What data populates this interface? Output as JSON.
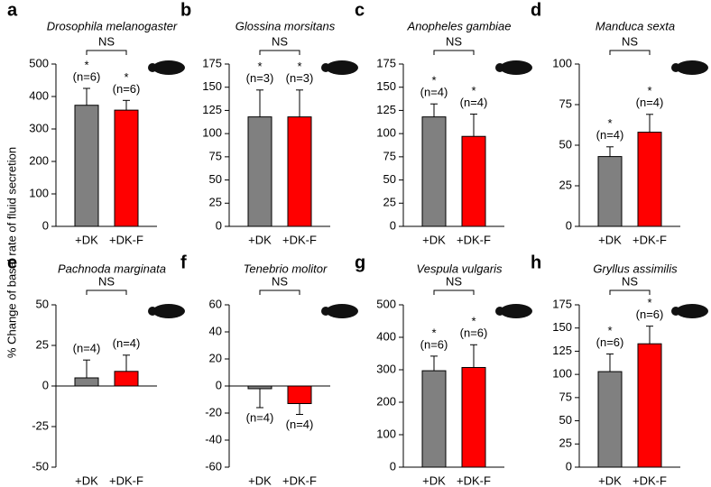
{
  "ylabel": "% Change of basal rate of fluid secretion",
  "chart_data": [
    {
      "type": "bar",
      "letter": "a",
      "title": "Drosophila melanogaster",
      "categories": [
        "+DK",
        "+DK-F"
      ],
      "values": [
        373,
        358
      ],
      "errors": [
        52,
        30
      ],
      "colors": [
        "#808080",
        "#ff0000"
      ],
      "annotations": [
        "(n=6)",
        "(n=6)"
      ],
      "stars": [
        "*",
        "*"
      ],
      "bracket_label": "NS",
      "ylim": [
        0,
        500
      ],
      "yticks": [
        0,
        100,
        200,
        300,
        400,
        500
      ]
    },
    {
      "type": "bar",
      "letter": "b",
      "title": "Glossina morsitans",
      "categories": [
        "+DK",
        "+DK-F"
      ],
      "values": [
        118,
        118
      ],
      "errors": [
        29,
        29
      ],
      "colors": [
        "#808080",
        "#ff0000"
      ],
      "annotations": [
        "(n=3)",
        "(n=3)"
      ],
      "stars": [
        "*",
        "*"
      ],
      "bracket_label": "NS",
      "ylim": [
        0,
        175
      ],
      "yticks": [
        0,
        25,
        50,
        75,
        100,
        125,
        150,
        175
      ]
    },
    {
      "type": "bar",
      "letter": "c",
      "title": "Anopheles gambiae",
      "categories": [
        "+DK",
        "+DK-F"
      ],
      "values": [
        118,
        97
      ],
      "errors": [
        14,
        24
      ],
      "colors": [
        "#808080",
        "#ff0000"
      ],
      "annotations": [
        "(n=4)",
        "(n=4)"
      ],
      "stars": [
        "*",
        "*"
      ],
      "bracket_label": "NS",
      "ylim": [
        0,
        175
      ],
      "yticks": [
        0,
        25,
        50,
        75,
        100,
        125,
        150,
        175
      ]
    },
    {
      "type": "bar",
      "letter": "d",
      "title": "Manduca sexta",
      "categories": [
        "+DK",
        "+DK-F"
      ],
      "values": [
        43,
        58
      ],
      "errors": [
        6,
        11
      ],
      "colors": [
        "#808080",
        "#ff0000"
      ],
      "annotations": [
        "(n=4)",
        "(n=4)"
      ],
      "stars": [
        "*",
        "*"
      ],
      "bracket_label": "NS",
      "ylim": [
        0,
        100
      ],
      "yticks": [
        0,
        25,
        50,
        75,
        100
      ]
    },
    {
      "type": "bar",
      "letter": "e",
      "title": "Pachnoda marginata",
      "categories": [
        "+DK",
        "+DK-F"
      ],
      "values": [
        5,
        9
      ],
      "errors": [
        11,
        10
      ],
      "colors": [
        "#808080",
        "#ff0000"
      ],
      "annotations": [
        "(n=4)",
        "(n=4)"
      ],
      "bracket_label": "NS",
      "ylim": [
        -50,
        50
      ],
      "yticks": [
        -50,
        -25,
        0,
        25,
        50
      ]
    },
    {
      "type": "bar",
      "letter": "f",
      "title": "Tenebrio molitor",
      "categories": [
        "+DK",
        "+DK-F"
      ],
      "values": [
        -2,
        -13
      ],
      "errors": [
        14,
        8
      ],
      "colors": [
        "#808080",
        "#ff0000"
      ],
      "annotations": [
        "(n=4)",
        "(n=4)"
      ],
      "bracket_label": "NS",
      "ylim": [
        -60,
        60
      ],
      "yticks": [
        -60,
        -40,
        -20,
        0,
        20,
        40,
        60
      ]
    },
    {
      "type": "bar",
      "letter": "g",
      "title": "Vespula vulgaris",
      "categories": [
        "+DK",
        "+DK-F"
      ],
      "values": [
        297,
        307
      ],
      "errors": [
        45,
        70
      ],
      "colors": [
        "#808080",
        "#ff0000"
      ],
      "annotations": [
        "(n=6)",
        "(n=6)"
      ],
      "stars": [
        "*",
        "*"
      ],
      "bracket_label": "NS",
      "ylim": [
        0,
        500
      ],
      "yticks": [
        0,
        100,
        200,
        300,
        400,
        500
      ]
    },
    {
      "type": "bar",
      "letter": "h",
      "title": "Gryllus assimilis",
      "categories": [
        "+DK",
        "+DK-F"
      ],
      "values": [
        103,
        133
      ],
      "errors": [
        19,
        19
      ],
      "colors": [
        "#808080",
        "#ff0000"
      ],
      "annotations": [
        "(n=6)",
        "(n=6)"
      ],
      "stars": [
        "*",
        "*"
      ],
      "bracket_label": "NS",
      "ylim": [
        0,
        175
      ],
      "yticks": [
        0,
        25,
        50,
        75,
        100,
        125,
        150,
        175
      ]
    }
  ]
}
